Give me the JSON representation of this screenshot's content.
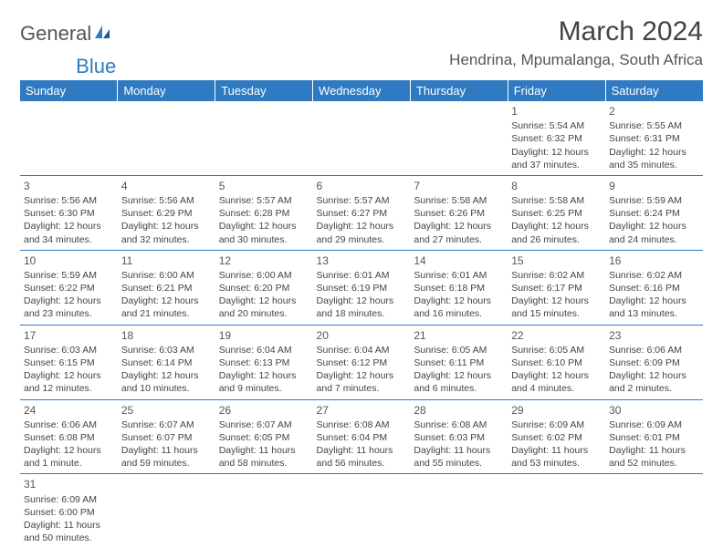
{
  "branding": {
    "logo_text_1": "General",
    "logo_text_2": "Blue",
    "logo_color_1": "#555555",
    "logo_color_2": "#2f7ac0"
  },
  "header": {
    "month_title": "March 2024",
    "location": "Hendrina, Mpumalanga, South Africa"
  },
  "calendar": {
    "header_bg": "#2f7ac0",
    "header_fg": "#ffffff",
    "border_color": "#2f7ac0",
    "text_color": "#444444",
    "day_headers": [
      "Sunday",
      "Monday",
      "Tuesday",
      "Wednesday",
      "Thursday",
      "Friday",
      "Saturday"
    ],
    "weeks": [
      [
        null,
        null,
        null,
        null,
        null,
        {
          "n": "1",
          "sunrise": "Sunrise: 5:54 AM",
          "sunset": "Sunset: 6:32 PM",
          "daylight": "Daylight: 12 hours and 37 minutes."
        },
        {
          "n": "2",
          "sunrise": "Sunrise: 5:55 AM",
          "sunset": "Sunset: 6:31 PM",
          "daylight": "Daylight: 12 hours and 35 minutes."
        }
      ],
      [
        {
          "n": "3",
          "sunrise": "Sunrise: 5:56 AM",
          "sunset": "Sunset: 6:30 PM",
          "daylight": "Daylight: 12 hours and 34 minutes."
        },
        {
          "n": "4",
          "sunrise": "Sunrise: 5:56 AM",
          "sunset": "Sunset: 6:29 PM",
          "daylight": "Daylight: 12 hours and 32 minutes."
        },
        {
          "n": "5",
          "sunrise": "Sunrise: 5:57 AM",
          "sunset": "Sunset: 6:28 PM",
          "daylight": "Daylight: 12 hours and 30 minutes."
        },
        {
          "n": "6",
          "sunrise": "Sunrise: 5:57 AM",
          "sunset": "Sunset: 6:27 PM",
          "daylight": "Daylight: 12 hours and 29 minutes."
        },
        {
          "n": "7",
          "sunrise": "Sunrise: 5:58 AM",
          "sunset": "Sunset: 6:26 PM",
          "daylight": "Daylight: 12 hours and 27 minutes."
        },
        {
          "n": "8",
          "sunrise": "Sunrise: 5:58 AM",
          "sunset": "Sunset: 6:25 PM",
          "daylight": "Daylight: 12 hours and 26 minutes."
        },
        {
          "n": "9",
          "sunrise": "Sunrise: 5:59 AM",
          "sunset": "Sunset: 6:24 PM",
          "daylight": "Daylight: 12 hours and 24 minutes."
        }
      ],
      [
        {
          "n": "10",
          "sunrise": "Sunrise: 5:59 AM",
          "sunset": "Sunset: 6:22 PM",
          "daylight": "Daylight: 12 hours and 23 minutes."
        },
        {
          "n": "11",
          "sunrise": "Sunrise: 6:00 AM",
          "sunset": "Sunset: 6:21 PM",
          "daylight": "Daylight: 12 hours and 21 minutes."
        },
        {
          "n": "12",
          "sunrise": "Sunrise: 6:00 AM",
          "sunset": "Sunset: 6:20 PM",
          "daylight": "Daylight: 12 hours and 20 minutes."
        },
        {
          "n": "13",
          "sunrise": "Sunrise: 6:01 AM",
          "sunset": "Sunset: 6:19 PM",
          "daylight": "Daylight: 12 hours and 18 minutes."
        },
        {
          "n": "14",
          "sunrise": "Sunrise: 6:01 AM",
          "sunset": "Sunset: 6:18 PM",
          "daylight": "Daylight: 12 hours and 16 minutes."
        },
        {
          "n": "15",
          "sunrise": "Sunrise: 6:02 AM",
          "sunset": "Sunset: 6:17 PM",
          "daylight": "Daylight: 12 hours and 15 minutes."
        },
        {
          "n": "16",
          "sunrise": "Sunrise: 6:02 AM",
          "sunset": "Sunset: 6:16 PM",
          "daylight": "Daylight: 12 hours and 13 minutes."
        }
      ],
      [
        {
          "n": "17",
          "sunrise": "Sunrise: 6:03 AM",
          "sunset": "Sunset: 6:15 PM",
          "daylight": "Daylight: 12 hours and 12 minutes."
        },
        {
          "n": "18",
          "sunrise": "Sunrise: 6:03 AM",
          "sunset": "Sunset: 6:14 PM",
          "daylight": "Daylight: 12 hours and 10 minutes."
        },
        {
          "n": "19",
          "sunrise": "Sunrise: 6:04 AM",
          "sunset": "Sunset: 6:13 PM",
          "daylight": "Daylight: 12 hours and 9 minutes."
        },
        {
          "n": "20",
          "sunrise": "Sunrise: 6:04 AM",
          "sunset": "Sunset: 6:12 PM",
          "daylight": "Daylight: 12 hours and 7 minutes."
        },
        {
          "n": "21",
          "sunrise": "Sunrise: 6:05 AM",
          "sunset": "Sunset: 6:11 PM",
          "daylight": "Daylight: 12 hours and 6 minutes."
        },
        {
          "n": "22",
          "sunrise": "Sunrise: 6:05 AM",
          "sunset": "Sunset: 6:10 PM",
          "daylight": "Daylight: 12 hours and 4 minutes."
        },
        {
          "n": "23",
          "sunrise": "Sunrise: 6:06 AM",
          "sunset": "Sunset: 6:09 PM",
          "daylight": "Daylight: 12 hours and 2 minutes."
        }
      ],
      [
        {
          "n": "24",
          "sunrise": "Sunrise: 6:06 AM",
          "sunset": "Sunset: 6:08 PM",
          "daylight": "Daylight: 12 hours and 1 minute."
        },
        {
          "n": "25",
          "sunrise": "Sunrise: 6:07 AM",
          "sunset": "Sunset: 6:07 PM",
          "daylight": "Daylight: 11 hours and 59 minutes."
        },
        {
          "n": "26",
          "sunrise": "Sunrise: 6:07 AM",
          "sunset": "Sunset: 6:05 PM",
          "daylight": "Daylight: 11 hours and 58 minutes."
        },
        {
          "n": "27",
          "sunrise": "Sunrise: 6:08 AM",
          "sunset": "Sunset: 6:04 PM",
          "daylight": "Daylight: 11 hours and 56 minutes."
        },
        {
          "n": "28",
          "sunrise": "Sunrise: 6:08 AM",
          "sunset": "Sunset: 6:03 PM",
          "daylight": "Daylight: 11 hours and 55 minutes."
        },
        {
          "n": "29",
          "sunrise": "Sunrise: 6:09 AM",
          "sunset": "Sunset: 6:02 PM",
          "daylight": "Daylight: 11 hours and 53 minutes."
        },
        {
          "n": "30",
          "sunrise": "Sunrise: 6:09 AM",
          "sunset": "Sunset: 6:01 PM",
          "daylight": "Daylight: 11 hours and 52 minutes."
        }
      ],
      [
        {
          "n": "31",
          "sunrise": "Sunrise: 6:09 AM",
          "sunset": "Sunset: 6:00 PM",
          "daylight": "Daylight: 11 hours and 50 minutes."
        },
        null,
        null,
        null,
        null,
        null,
        null
      ]
    ]
  }
}
